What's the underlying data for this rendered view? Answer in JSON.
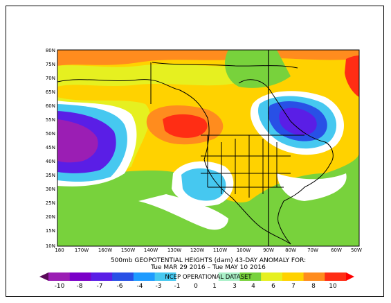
{
  "map": {
    "type": "contour-anomaly-map",
    "region": "North Pacific / North America",
    "lat_labels": [
      "80N",
      "75N",
      "70N",
      "65N",
      "60N",
      "55N",
      "50N",
      "45N",
      "40N",
      "35N",
      "30N",
      "25N",
      "20N",
      "15N",
      "10N"
    ],
    "lon_labels": [
      "180",
      "170W",
      "160W",
      "150W",
      "140W",
      "130W",
      "120W",
      "110W",
      "100W",
      "90W",
      "80W",
      "70W",
      "60W",
      "50W"
    ]
  },
  "caption": {
    "line1": "500mb GEOPOTENTIAL HEIGHTS (dam)   43-DAY ANOMALY FOR:",
    "line2": "Tue MAR 29 2016 – Tue MAY 10 2016"
  },
  "colorbar": {
    "labels": [
      "-10",
      "-8",
      "-7",
      "-6",
      "-4",
      "-3",
      "-1",
      "0",
      "1",
      "3",
      "4",
      "6",
      "7",
      "8",
      "10"
    ],
    "colors": [
      "#5a0a5a",
      "#9b1eb4",
      "#7a00c8",
      "#5a1ee6",
      "#2850e6",
      "#1e9bff",
      "#46c8f0",
      "#ffffff",
      "#ffffff",
      "#aaf0c8",
      "#78d23c",
      "#e6f020",
      "#ffd200",
      "#ff8c1e",
      "#ff2d14",
      "#ff0000"
    ],
    "dataset_label": "NCEP OPERATIONAL DATASET"
  }
}
